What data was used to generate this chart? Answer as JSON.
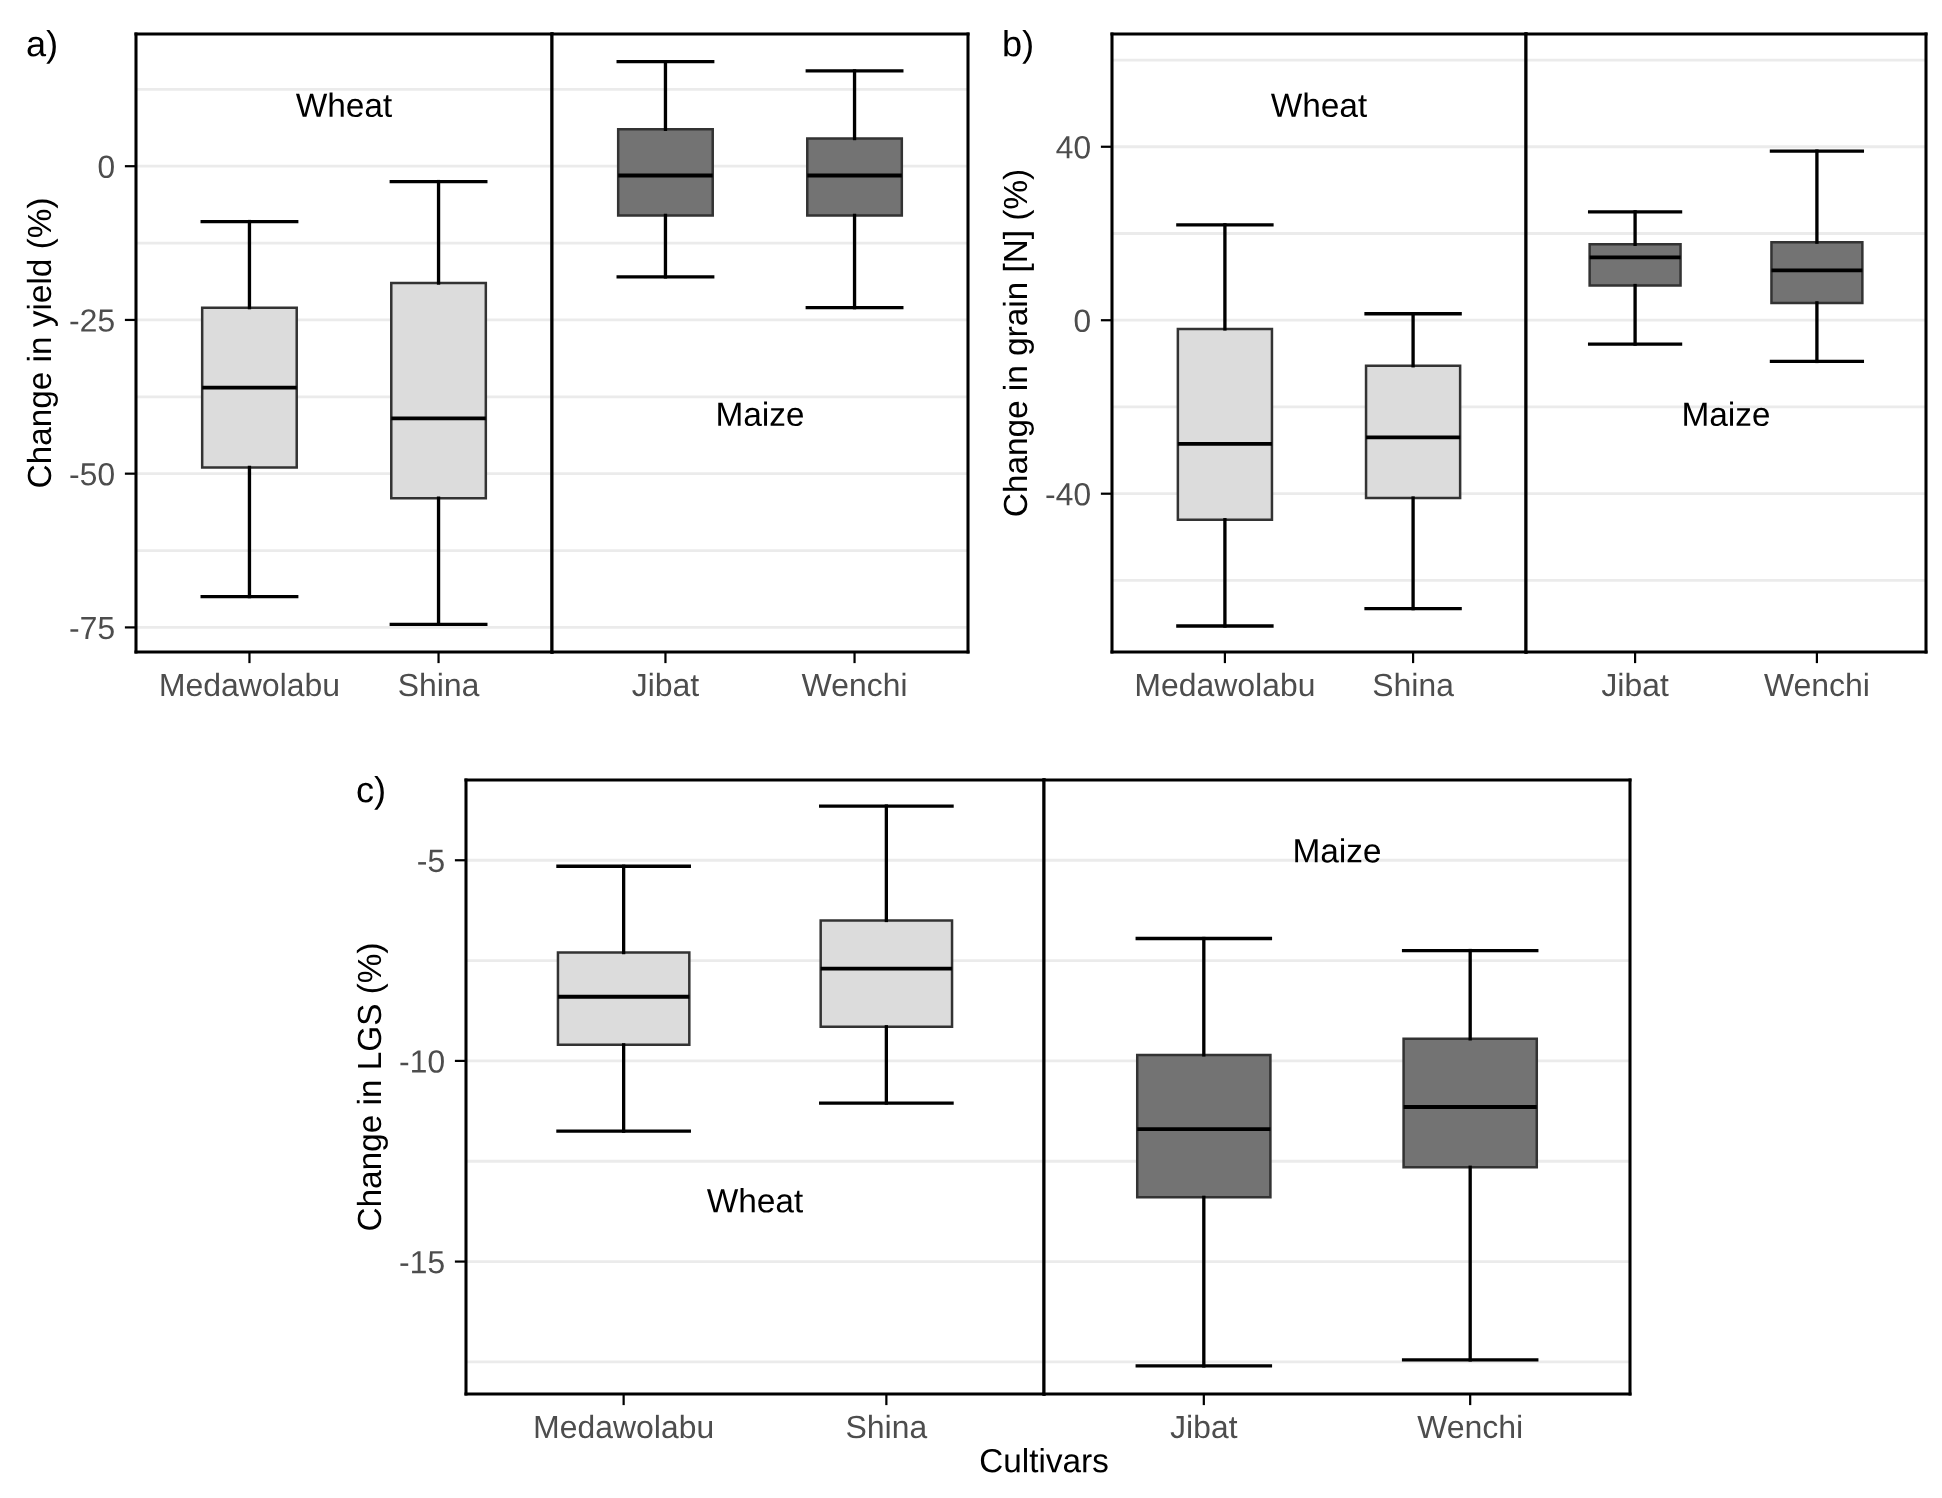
{
  "chart_data": [
    {
      "type": "box",
      "title": "a)",
      "ylabel": "Change in yield (%)",
      "annotations": [
        "Wheat"
      ],
      "categories": [
        "Medawolabu",
        "Shina"
      ],
      "colors": [
        "#dcdcdc",
        "#dcdcdc"
      ],
      "boxes": [
        {
          "low": -70,
          "q1": -49,
          "median": -36,
          "q3": -23,
          "high": -9
        },
        {
          "low": -74.5,
          "q1": -54,
          "median": -41,
          "q3": -19,
          "high": -2.5
        }
      ],
      "ylim": [
        -79,
        21.5
      ],
      "yticks": [
        {
          "value": -75,
          "label": "-75"
        },
        {
          "value": -62.5,
          "label": null
        },
        {
          "value": -50,
          "label": "-50"
        },
        {
          "value": -37.5,
          "label": null
        },
        {
          "value": -25,
          "label": "-25"
        },
        {
          "value": -12.5,
          "label": null
        },
        0,
        {
          "value": 12.5,
          "label": null
        }
      ],
      "grid": "y"
    },
    {
      "type": "box",
      "annotations": [
        "Maize"
      ],
      "categories": [
        "Jibat",
        "Wenchi"
      ],
      "colors": [
        "#737373",
        "#737373"
      ],
      "boxes": [
        {
          "low": -18,
          "q1": -8,
          "median": -1.5,
          "q3": 6,
          "high": 17
        },
        {
          "low": -23,
          "q1": -8,
          "median": -1.5,
          "q3": 4.5,
          "high": 15.5
        }
      ],
      "ylim": [
        -79,
        21.5
      ],
      "yticks": [
        {
          "value": -75,
          "label": null
        },
        {
          "value": -62.5,
          "label": null
        },
        {
          "value": -50,
          "label": null
        },
        {
          "value": -37.5,
          "label": null
        },
        {
          "value": -25,
          "label": null
        },
        {
          "value": -12.5,
          "label": null
        },
        {
          "value": 0,
          "label": null
        },
        {
          "value": 12.5,
          "label": null
        }
      ],
      "grid": "y",
      "tick_labels": "x"
    },
    {
      "type": "box",
      "title": "b)",
      "ylabel": "Change in grain [N] (%)",
      "annotations": [
        "Wheat"
      ],
      "categories": [
        "Medawolabu",
        "Shina"
      ],
      "colors": [
        "#dcdcdc",
        "#dcdcdc"
      ],
      "boxes": [
        {
          "low": -70.5,
          "q1": -46,
          "median": -28.5,
          "q3": -2,
          "high": 22
        },
        {
          "low": -66.5,
          "q1": -41,
          "median": -27,
          "q3": -10.5,
          "high": 1.5
        }
      ],
      "ylim": [
        -76.5,
        66
      ],
      "yticks": [
        {
          "value": -60,
          "label": null
        },
        {
          "value": -40,
          "label": "-40"
        },
        {
          "value": -20,
          "label": null
        },
        0,
        {
          "value": 20,
          "label": null
        },
        40,
        {
          "value": 60,
          "label": null
        }
      ],
      "grid": "y"
    },
    {
      "type": "box",
      "annotations": [
        "Maize"
      ],
      "categories": [
        "Jibat",
        "Wenchi"
      ],
      "colors": [
        "#737373",
        "#737373"
      ],
      "boxes": [
        {
          "low": -5.5,
          "q1": 8,
          "median": 14.5,
          "q3": 17.5,
          "high": 25
        },
        {
          "low": -9.5,
          "q1": 4,
          "median": 11.5,
          "q3": 18,
          "high": 39
        }
      ],
      "ylim": [
        -76.5,
        66
      ],
      "yticks": [
        {
          "value": -60,
          "label": null
        },
        {
          "value": -40,
          "label": null
        },
        {
          "value": -20,
          "label": null
        },
        {
          "value": 0,
          "label": null
        },
        {
          "value": 20,
          "label": null
        },
        {
          "value": 40,
          "label": null
        },
        {
          "value": 60,
          "label": null
        }
      ],
      "grid": "y",
      "tick_labels": "x"
    },
    {
      "type": "box",
      "title": "c)",
      "ylabel": "Change in LGS (%)",
      "xlabel": "Cultivars",
      "annotations": [
        "Wheat"
      ],
      "categories": [
        "Medawolabu",
        "Shina"
      ],
      "colors": [
        "#dcdcdc",
        "#dcdcdc"
      ],
      "boxes": [
        {
          "low": -11.75,
          "q1": -9.6,
          "median": -8.4,
          "q3": -7.3,
          "high": -5.15
        },
        {
          "low": -11.05,
          "q1": -9.15,
          "median": -7.7,
          "q3": -6.5,
          "high": -3.65
        }
      ],
      "ylim": [
        -18.3,
        -3
      ],
      "yticks": [
        {
          "value": -17.5,
          "label": null
        },
        -15,
        {
          "value": -12.5,
          "label": null
        },
        -10,
        {
          "value": -7.5,
          "label": null
        },
        -5
      ],
      "grid": "y"
    },
    {
      "type": "box",
      "annotations": [
        "Maize"
      ],
      "categories": [
        "Jibat",
        "Wenchi"
      ],
      "colors": [
        "#737373",
        "#737373"
      ],
      "boxes": [
        {
          "low": -17.6,
          "q1": -13.4,
          "median": -11.7,
          "q3": -9.85,
          "high": -6.95
        },
        {
          "low": -17.45,
          "q1": -12.65,
          "median": -11.15,
          "q3": -9.45,
          "high": -7.25
        }
      ],
      "ylim": [
        -18.3,
        -3
      ],
      "yticks": [
        {
          "value": -17.5,
          "label": null
        },
        {
          "value": -15,
          "label": null
        },
        {
          "value": -12.5,
          "label": null
        },
        {
          "value": -10,
          "label": null
        },
        {
          "value": -7.5,
          "label": null
        },
        {
          "value": -5,
          "label": null
        }
      ],
      "grid": "y",
      "tick_labels": "x"
    }
  ]
}
